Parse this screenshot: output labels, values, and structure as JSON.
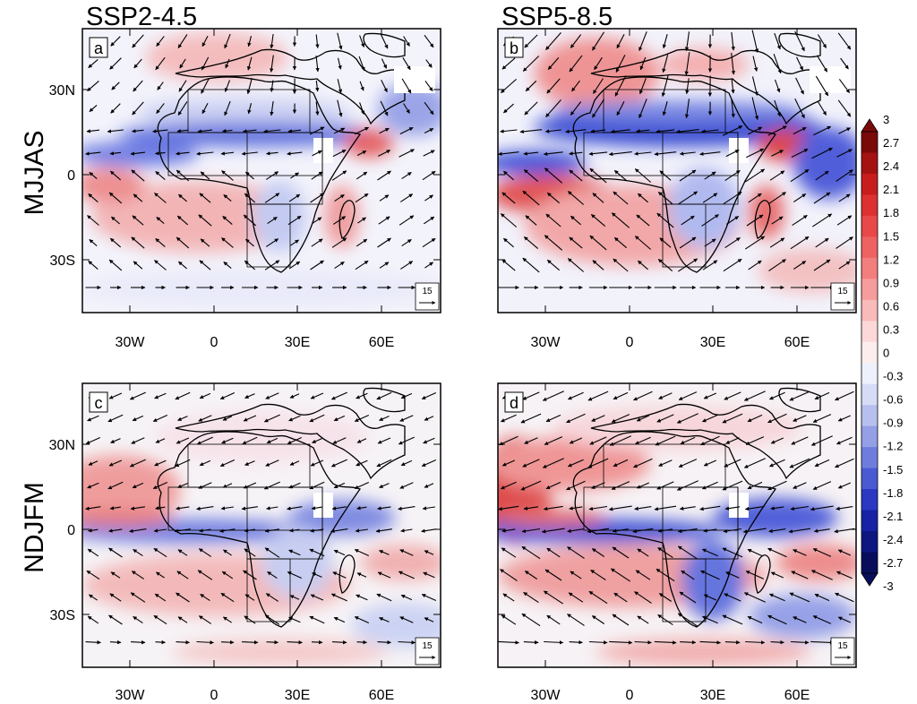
{
  "column_titles": [
    "SSP2-4.5",
    "SSP5-8.5"
  ],
  "row_titles": [
    "MJJAS",
    "NDJFM"
  ],
  "panels": [
    {
      "label": "a",
      "scenario": "SSP2-4.5",
      "season": "MJJAS",
      "ref_vector": "15"
    },
    {
      "label": "b",
      "scenario": "SSP5-8.5",
      "season": "MJJAS",
      "ref_vector": "15"
    },
    {
      "label": "c",
      "scenario": "SSP2-4.5",
      "season": "NDJFM",
      "ref_vector": "15"
    },
    {
      "label": "d",
      "scenario": "SSP5-8.5",
      "season": "NDJFM",
      "ref_vector": "15"
    }
  ],
  "lon_ticks": [
    "30W",
    "0",
    "30E",
    "60E"
  ],
  "lat_ticks": [
    "30N",
    "0",
    "30S"
  ],
  "colorbar": {
    "labels": [
      "3",
      "2.7",
      "2.4",
      "2.1",
      "1.8",
      "1.5",
      "1.2",
      "0.9",
      "0.6",
      "0.3",
      "0",
      "-0.3",
      "-0.6",
      "-0.9",
      "-1.2",
      "-1.5",
      "-1.8",
      "-2.1",
      "-2.4",
      "-2.7",
      "-3"
    ],
    "min": -3,
    "max": 3,
    "step": 0.3,
    "colors": [
      "#7a0a0a",
      "#a51212",
      "#c81d1d",
      "#dd3030",
      "#e84848",
      "#ef6262",
      "#f37e7e",
      "#f69c9c",
      "#f9baba",
      "#fcd8d8",
      "#fdeeee",
      "#eef0fb",
      "#d6dcf6",
      "#b6c0ef",
      "#949fe6",
      "#6e7ddd",
      "#4a5ad2",
      "#2a38c2",
      "#1722a4",
      "#0e1680",
      "#080e5c"
    ]
  },
  "colors": {
    "red": "#e8585a",
    "blue": "#3b4fd8",
    "coast": "#000000"
  }
}
